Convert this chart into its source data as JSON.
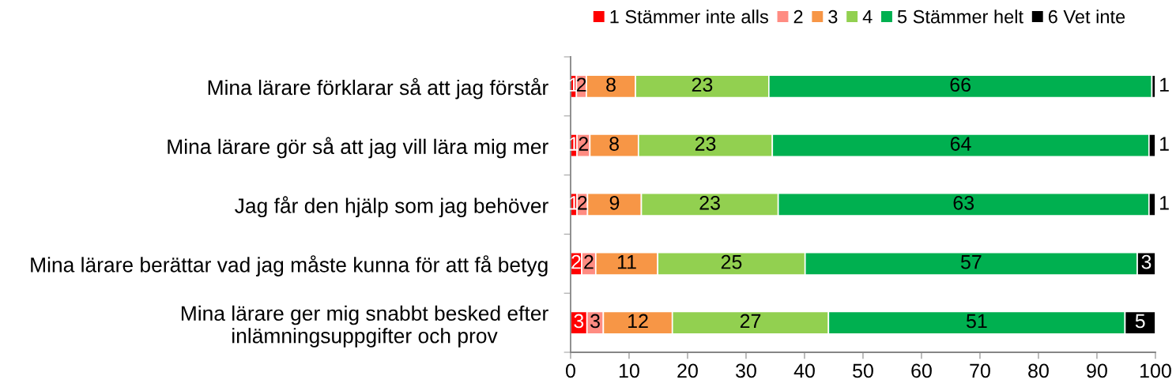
{
  "chart_data": {
    "type": "bar",
    "orientation": "horizontal",
    "stacked": true,
    "categories": [
      "Mina lärare förklarar så att jag förstår",
      "Mina lärare gör så att jag vill lära mig mer",
      "Jag får den hjälp som jag behöver",
      "Mina lärare berättar vad jag måste kunna för att få betyg",
      "Mina lärare ger mig snabbt besked efter\ninlämningsuppgifter och prov"
    ],
    "series": [
      {
        "name": "1 Stämmer inte alls",
        "color": "#ff0000",
        "values": [
          1.0,
          1.1,
          1.1,
          1.9,
          2.8
        ],
        "value_labels": [
          "1",
          "1",
          "1",
          "2",
          "3"
        ]
      },
      {
        "name": "2",
        "color": "#ff8c82",
        "values": [
          1.7,
          2.2,
          1.8,
          2.4,
          2.8
        ],
        "value_labels": [
          "2",
          "2",
          "2",
          "2",
          "3"
        ]
      },
      {
        "name": "3",
        "color": "#f79646",
        "values": [
          8.4,
          8.3,
          9.2,
          10.6,
          11.8
        ],
        "value_labels": [
          "8",
          "8",
          "9",
          "11",
          "12"
        ]
      },
      {
        "name": "4",
        "color": "#92d050",
        "values": [
          22.8,
          22.9,
          23.4,
          25.2,
          26.7
        ],
        "value_labels": [
          "23",
          "23",
          "23",
          "25",
          "27"
        ]
      },
      {
        "name": "5 Stämmer helt",
        "color": "#00b050",
        "values": [
          65.5,
          64.4,
          63.4,
          56.8,
          50.7
        ],
        "value_labels": [
          "66",
          "64",
          "63",
          "57",
          "51"
        ]
      },
      {
        "name": "6 Vet inte",
        "color": "#000000",
        "values": [
          0.6,
          1.1,
          1.1,
          3.1,
          5.2
        ],
        "value_labels": [
          "1",
          "1",
          "1",
          "3",
          "5"
        ]
      }
    ],
    "xlim": [
      0,
      100
    ],
    "xticks": [
      0,
      10,
      20,
      30,
      40,
      50,
      60,
      70,
      80,
      90,
      100
    ],
    "legend": "top right"
  }
}
